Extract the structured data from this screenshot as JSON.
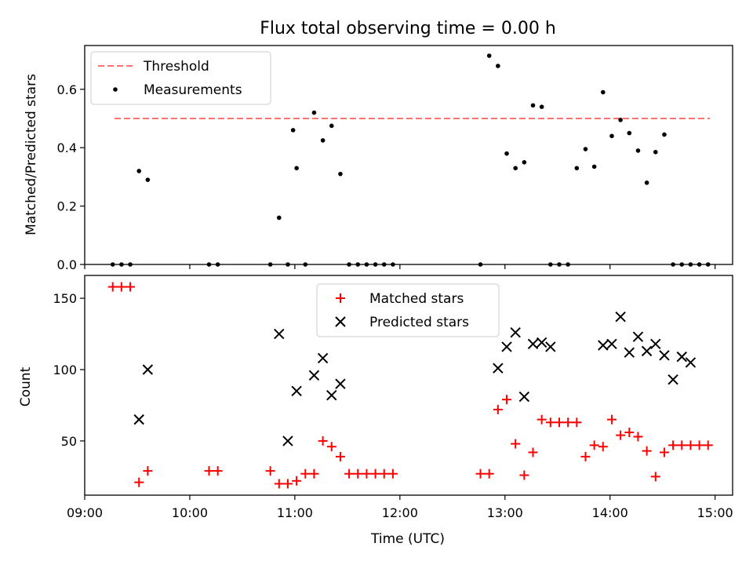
{
  "chart_data": [
    {
      "type": "scatter",
      "panel": "top",
      "title": "Flux total observing time = 0.00 h",
      "xlabel": "",
      "ylabel": "Matched/Predicted stars",
      "xlim": [
        "09:00",
        "15:10"
      ],
      "ylim": [
        0,
        0.75
      ],
      "yticks": [
        "0.0",
        "0.2",
        "0.4",
        "0.6"
      ],
      "ytick_values": [
        0,
        0.2,
        0.4,
        0.6
      ],
      "grid": false,
      "legend_position": "top-left",
      "threshold": {
        "name": "Threshold",
        "value": 0.5,
        "x_start": "09:17",
        "x_end": "14:57",
        "color": "#ff7070",
        "style": "dashed"
      },
      "series": [
        {
          "name": "Measurements",
          "marker": "dot",
          "color": "#000000",
          "x": [
            "09:16",
            "09:21",
            "09:26",
            "09:31",
            "09:36",
            "10:11",
            "10:16",
            "10:46",
            "10:51",
            "10:56",
            "10:59",
            "11:01",
            "11:06",
            "11:11",
            "11:16",
            "11:21",
            "11:26",
            "11:31",
            "11:36",
            "11:41",
            "11:46",
            "11:51",
            "11:56",
            "12:46",
            "12:51",
            "12:56",
            "13:01",
            "13:06",
            "13:11",
            "13:16",
            "13:21",
            "13:26",
            "13:31",
            "13:36",
            "13:41",
            "13:46",
            "13:51",
            "13:56",
            "14:01",
            "14:06",
            "14:11",
            "14:16",
            "14:21",
            "14:26",
            "14:31",
            "14:36",
            "14:41",
            "14:46",
            "14:51",
            "14:56"
          ],
          "y": [
            0,
            0,
            0,
            0.32,
            0.29,
            0,
            0,
            0,
            0.16,
            0,
            0.46,
            0.33,
            0,
            0.52,
            0.425,
            0.475,
            0.31,
            0,
            0,
            0,
            0,
            0,
            0,
            0,
            0.715,
            0.68,
            0.38,
            0.33,
            0.35,
            0.545,
            0.54,
            0,
            0,
            0,
            0.33,
            0.395,
            0.335,
            0.59,
            0.44,
            0.495,
            0.45,
            0.39,
            0.28,
            0.385,
            0.445,
            0,
            0,
            0,
            0,
            0
          ]
        }
      ]
    },
    {
      "type": "scatter",
      "panel": "bottom",
      "title": "",
      "xlabel": "Time (UTC)",
      "ylabel": "Count",
      "xlim": [
        "09:00",
        "15:10"
      ],
      "ylim": [
        12,
        166
      ],
      "xticks": [
        "09:00",
        "10:00",
        "11:00",
        "12:00",
        "13:00",
        "14:00",
        "15:00"
      ],
      "yticks": [
        "50",
        "100",
        "150"
      ],
      "ytick_values": [
        50,
        100,
        150
      ],
      "grid": false,
      "legend_position": "top-center",
      "series": [
        {
          "name": "Matched stars",
          "marker": "plus",
          "color": "#ff0000",
          "x": [
            "09:16",
            "09:21",
            "09:26",
            "09:31",
            "09:36",
            "10:11",
            "10:16",
            "10:46",
            "10:51",
            "10:56",
            "11:01",
            "11:06",
            "11:11",
            "11:16",
            "11:21",
            "11:26",
            "11:31",
            "11:36",
            "11:41",
            "11:46",
            "11:51",
            "11:56",
            "12:46",
            "12:51",
            "12:56",
            "13:01",
            "13:06",
            "13:11",
            "13:16",
            "13:21",
            "13:26",
            "13:31",
            "13:36",
            "13:41",
            "13:46",
            "13:51",
            "13:56",
            "14:01",
            "14:06",
            "14:11",
            "14:16",
            "14:21",
            "14:26",
            "14:31",
            "14:36",
            "14:41",
            "14:46",
            "14:51",
            "14:56"
          ],
          "y": [
            158,
            158,
            158,
            21,
            29,
            29,
            29,
            29,
            20,
            20,
            22,
            27,
            27,
            50,
            46,
            39,
            27,
            27,
            27,
            27,
            27,
            27,
            27,
            27,
            72,
            79,
            48,
            26,
            42,
            65,
            63,
            63,
            63,
            63,
            39,
            47,
            46,
            65,
            54,
            56,
            53,
            43,
            25,
            42,
            47,
            47,
            47,
            47,
            47
          ]
        },
        {
          "name": "Predicted stars",
          "marker": "x",
          "color": "#000000",
          "x": [
            "09:31",
            "09:36",
            "10:51",
            "10:56",
            "11:01",
            "11:11",
            "11:16",
            "11:21",
            "11:26",
            "12:56",
            "13:01",
            "13:06",
            "13:11",
            "13:16",
            "13:21",
            "13:26",
            "13:56",
            "14:01",
            "14:06",
            "14:11",
            "14:16",
            "14:21",
            "14:26",
            "14:31",
            "14:36",
            "14:41",
            "14:46"
          ],
          "y": [
            65,
            100,
            125,
            50,
            85,
            96,
            108,
            82,
            90,
            101,
            116,
            126,
            81,
            118,
            119,
            116,
            117,
            118,
            137,
            112,
            123,
            113,
            118,
            110,
            93,
            109,
            105
          ]
        }
      ]
    }
  ]
}
